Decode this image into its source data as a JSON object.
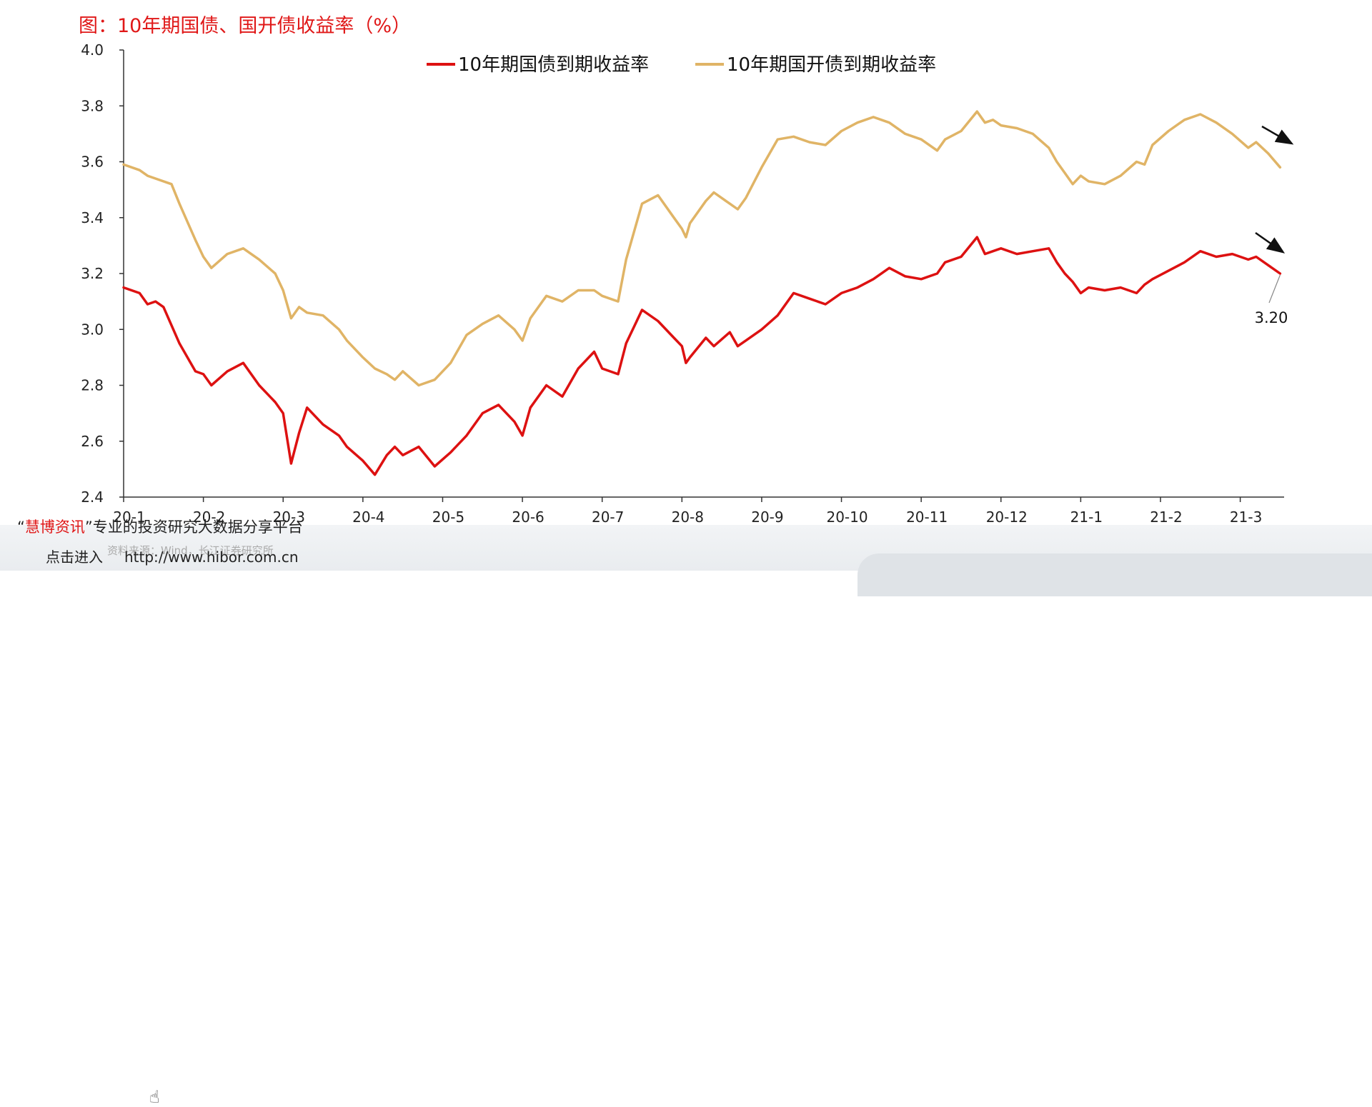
{
  "page_title": "图：10年期国债、国开债收益率（%）",
  "watermark": {
    "quote_open": "“",
    "brand": "慧博资讯",
    "quote_close": "”",
    "slogan": "专业的投资研究大数据分享平台",
    "enter": "点击进入",
    "url": "http://www.hibor.com.cn",
    "source": "资料来源：Wind，长江证券研究所"
  },
  "colors": {
    "title": "#e01818",
    "treasury": "#dd1111",
    "cdb": "#e0b466",
    "axis": "#333333"
  },
  "chart_data": {
    "type": "line",
    "title": "图：10年期国债、国开债收益率（%）",
    "xlabel": "",
    "ylabel": "",
    "ylim": [
      2.4,
      4.0
    ],
    "xlim": [
      0,
      14.55
    ],
    "yticks": [
      4.0,
      3.8,
      3.6,
      3.4,
      3.2,
      3.0,
      2.8,
      2.6,
      2.4
    ],
    "ytick_labels": [
      "4.0",
      "3.8",
      "3.6",
      "3.4",
      "3.2",
      "3.0",
      "2.8",
      "2.6",
      "2.4"
    ],
    "categories": [
      "20-1",
      "20-2",
      "20-3",
      "20-4",
      "20-5",
      "20-6",
      "20-7",
      "20-8",
      "20-9",
      "20-10",
      "20-11",
      "20-12",
      "21-1",
      "21-2",
      "21-3"
    ],
    "grid": false,
    "legend_position": "top-center",
    "annotation": "3.20",
    "series": [
      {
        "name": "10年期国债到期收益率",
        "color": "#dd1111",
        "x": [
          0,
          0.2,
          0.3,
          0.4,
          0.5,
          0.7,
          0.9,
          1.0,
          1.1,
          1.3,
          1.5,
          1.7,
          1.9,
          2.0,
          2.1,
          2.2,
          2.3,
          2.5,
          2.7,
          2.8,
          3.0,
          3.15,
          3.3,
          3.4,
          3.5,
          3.7,
          3.9,
          4.1,
          4.3,
          4.5,
          4.7,
          4.9,
          5.0,
          5.1,
          5.3,
          5.5,
          5.7,
          5.9,
          6.0,
          6.2,
          6.3,
          6.5,
          6.7,
          6.9,
          7.0,
          7.05,
          7.1,
          7.3,
          7.4,
          7.6,
          7.7,
          7.8,
          8.0,
          8.2,
          8.4,
          8.6,
          8.8,
          9.0,
          9.2,
          9.4,
          9.6,
          9.8,
          10.0,
          10.2,
          10.3,
          10.5,
          10.7,
          10.8,
          10.9,
          11.0,
          11.2,
          11.4,
          11.6,
          11.7,
          11.8,
          11.9,
          12.0,
          12.1,
          12.3,
          12.5,
          12.7,
          12.8,
          12.9,
          13.1,
          13.3,
          13.5,
          13.7,
          13.9,
          14.1,
          14.2,
          14.35,
          14.5
        ],
        "values": [
          3.15,
          3.13,
          3.09,
          3.1,
          3.08,
          2.95,
          2.85,
          2.84,
          2.8,
          2.85,
          2.88,
          2.8,
          2.74,
          2.7,
          2.52,
          2.63,
          2.72,
          2.66,
          2.62,
          2.58,
          2.53,
          2.48,
          2.55,
          2.58,
          2.55,
          2.58,
          2.51,
          2.56,
          2.62,
          2.7,
          2.73,
          2.67,
          2.62,
          2.72,
          2.8,
          2.76,
          2.86,
          2.92,
          2.86,
          2.84,
          2.95,
          3.07,
          3.03,
          2.97,
          2.94,
          2.88,
          2.9,
          2.97,
          2.94,
          2.99,
          2.94,
          2.96,
          3.0,
          3.05,
          3.13,
          3.11,
          3.09,
          3.13,
          3.15,
          3.18,
          3.22,
          3.19,
          3.18,
          3.2,
          3.24,
          3.26,
          3.33,
          3.27,
          3.28,
          3.29,
          3.27,
          3.28,
          3.29,
          3.24,
          3.2,
          3.17,
          3.13,
          3.15,
          3.14,
          3.15,
          3.13,
          3.16,
          3.18,
          3.21,
          3.24,
          3.28,
          3.26,
          3.27,
          3.25,
          3.26,
          3.23,
          3.2
        ]
      },
      {
        "name": "10年期国开债到期收益率",
        "color": "#e0b466",
        "x": [
          0,
          0.2,
          0.3,
          0.4,
          0.6,
          0.7,
          0.9,
          1.0,
          1.1,
          1.3,
          1.5,
          1.7,
          1.9,
          2.0,
          2.1,
          2.2,
          2.3,
          2.5,
          2.7,
          2.8,
          3.0,
          3.15,
          3.3,
          3.4,
          3.5,
          3.7,
          3.9,
          4.1,
          4.3,
          4.5,
          4.7,
          4.9,
          5.0,
          5.1,
          5.3,
          5.5,
          5.7,
          5.9,
          6.0,
          6.2,
          6.3,
          6.5,
          6.7,
          6.9,
          7.0,
          7.05,
          7.1,
          7.3,
          7.4,
          7.6,
          7.7,
          7.8,
          8.0,
          8.2,
          8.4,
          8.6,
          8.8,
          9.0,
          9.2,
          9.4,
          9.6,
          9.8,
          10.0,
          10.2,
          10.3,
          10.5,
          10.7,
          10.8,
          10.9,
          11.0,
          11.2,
          11.4,
          11.6,
          11.7,
          11.8,
          11.9,
          12.0,
          12.1,
          12.3,
          12.5,
          12.7,
          12.8,
          12.9,
          13.1,
          13.3,
          13.5,
          13.7,
          13.9,
          14.1,
          14.2,
          14.35,
          14.5
        ],
        "values": [
          3.59,
          3.57,
          3.55,
          3.54,
          3.52,
          3.45,
          3.32,
          3.26,
          3.22,
          3.27,
          3.29,
          3.25,
          3.2,
          3.14,
          3.04,
          3.08,
          3.06,
          3.05,
          3.0,
          2.96,
          2.9,
          2.86,
          2.84,
          2.82,
          2.85,
          2.8,
          2.82,
          2.88,
          2.98,
          3.02,
          3.05,
          3.0,
          2.96,
          3.04,
          3.12,
          3.1,
          3.14,
          3.14,
          3.12,
          3.1,
          3.25,
          3.45,
          3.48,
          3.4,
          3.36,
          3.33,
          3.38,
          3.46,
          3.49,
          3.45,
          3.43,
          3.47,
          3.58,
          3.68,
          3.69,
          3.67,
          3.66,
          3.71,
          3.74,
          3.76,
          3.74,
          3.7,
          3.68,
          3.64,
          3.68,
          3.71,
          3.78,
          3.74,
          3.75,
          3.73,
          3.72,
          3.7,
          3.65,
          3.6,
          3.56,
          3.52,
          3.55,
          3.53,
          3.52,
          3.55,
          3.6,
          3.59,
          3.66,
          3.71,
          3.75,
          3.77,
          3.74,
          3.7,
          3.65,
          3.67,
          3.63,
          3.58
        ]
      }
    ]
  }
}
